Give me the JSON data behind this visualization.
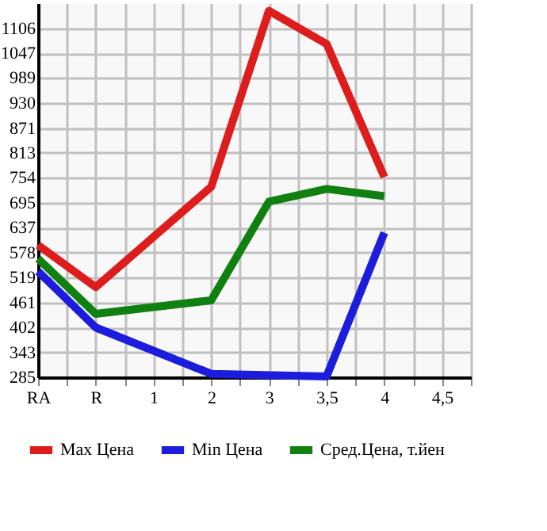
{
  "chart_data": {
    "type": "line",
    "categories": [
      "RA",
      "R",
      "1",
      "2",
      "3",
      "3,5",
      "4",
      "4,5"
    ],
    "series": [
      {
        "name": "Max Цена",
        "color": "#dd1c1c",
        "values": [
          596,
          497,
          null,
          733,
          1147,
          1069,
          756,
          null
        ]
      },
      {
        "name": "Min Цена",
        "color": "#1c1cdd",
        "values": [
          534,
          402,
          null,
          293,
          null,
          287,
          625,
          null
        ]
      },
      {
        "name": "Сред.Цена, т.йен",
        "color": "#108010",
        "values": [
          564,
          434,
          null,
          466,
          698,
          728,
          711,
          null
        ]
      }
    ],
    "ylim": [
      285,
      1165
    ],
    "yticks": [
      285,
      343,
      402,
      461,
      519,
      578,
      637,
      695,
      754,
      813,
      871,
      930,
      989,
      1047,
      1106
    ],
    "grid": true,
    "legend": "bottom",
    "marker": "none",
    "line_style": "solid"
  }
}
